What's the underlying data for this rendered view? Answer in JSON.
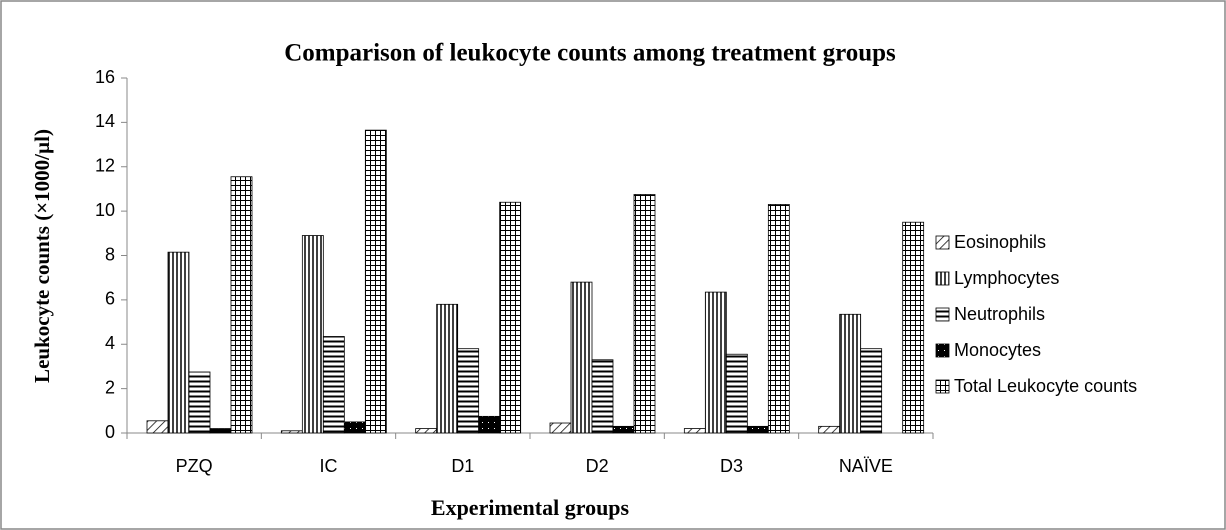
{
  "chart_data": {
    "type": "bar",
    "title": "Comparison of leukocyte counts among treatment groups",
    "xlabel": "Experimental groups",
    "ylabel": "Leukocyte counts (×1000/µl)",
    "categories": [
      "PZQ",
      "IC",
      "D1",
      "D2",
      "D3",
      "NAÏVE"
    ],
    "series": [
      {
        "name": "Eosinophils",
        "color": "#000000",
        "pattern": "diagonal",
        "values": [
          0.55,
          0.1,
          0.2,
          0.45,
          0.2,
          0.3
        ]
      },
      {
        "name": "Lymphocytes",
        "color": "#000000",
        "pattern": "vertical",
        "values": [
          8.15,
          8.9,
          5.8,
          6.8,
          6.35,
          5.35
        ]
      },
      {
        "name": "Neutrophils",
        "color": "#000000",
        "pattern": "horizontal",
        "values": [
          2.75,
          4.35,
          3.8,
          3.3,
          3.55,
          3.8
        ]
      },
      {
        "name": "Monocytes",
        "color": "#000000",
        "pattern": "dotted-solid",
        "values": [
          0.2,
          0.5,
          0.75,
          0.3,
          0.3,
          0
        ]
      },
      {
        "name": "Total Leukocyte  counts",
        "color": "#000000",
        "pattern": "grid",
        "values": [
          11.55,
          13.65,
          10.4,
          10.75,
          10.3,
          9.5
        ]
      }
    ],
    "ylim": [
      0,
      16
    ],
    "yticks": [
      0,
      2,
      4,
      6,
      8,
      10,
      12,
      14,
      16
    ],
    "grid": false,
    "legend": "right"
  }
}
